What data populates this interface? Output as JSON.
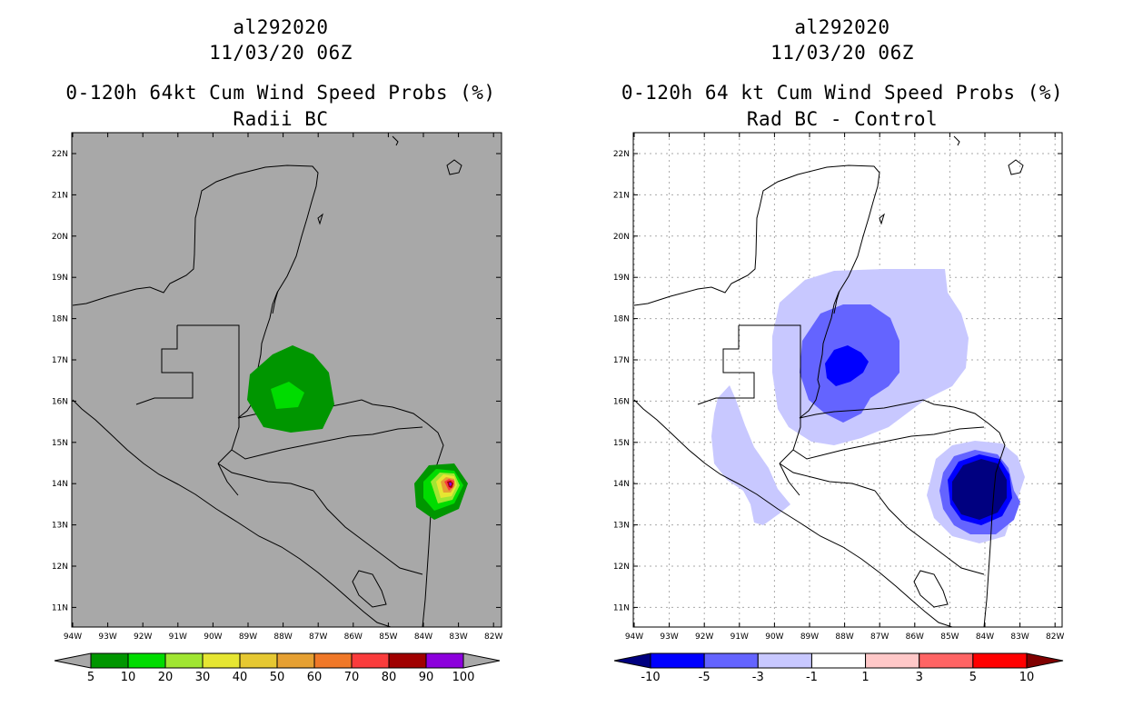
{
  "panels": [
    {
      "storm_id": "al292020",
      "datetime": "11/03/20 06Z",
      "product": "0-120h 64kt Cum Wind Speed Probs (%)",
      "subtitle": "Radii BC",
      "background": "#a8a8a8",
      "colorbar_labels": [
        "5",
        "10",
        "20",
        "30",
        "40",
        "50",
        "60",
        "70",
        "80",
        "90",
        "100"
      ],
      "colorbar_colors": [
        "#a8a8a8",
        "#009600",
        "#00dc00",
        "#a0e632",
        "#e6e632",
        "#e6c832",
        "#e6a032",
        "#f07828",
        "#fa3c3c",
        "#a00000",
        "#8c00dc",
        "#a8a8a8"
      ]
    },
    {
      "storm_id": "al292020",
      "datetime": "11/03/20 06Z",
      "product": "0-120h 64 kt Cum Wind Speed Probs (%)",
      "subtitle": "Rad BC - Control",
      "background": "#ffffff",
      "colorbar_labels": [
        "-10",
        "-5",
        "-3",
        "-1",
        "1",
        "3",
        "5",
        "10"
      ],
      "colorbar_colors": [
        "#000080",
        "#0000ff",
        "#6464ff",
        "#c8c8ff",
        "#ffffff",
        "#ffc8c8",
        "#ff6464",
        "#ff0000",
        "#800000"
      ]
    }
  ],
  "axes": {
    "lat_labels": [
      "22N",
      "21N",
      "20N",
      "19N",
      "18N",
      "17N",
      "16N",
      "15N",
      "14N",
      "13N",
      "12N",
      "11N"
    ],
    "lon_labels": [
      "94W",
      "93W",
      "92W",
      "91W",
      "90W",
      "89W",
      "88W",
      "87W",
      "86W",
      "85W",
      "84W",
      "83W",
      "82W"
    ],
    "lat_range": [
      10.5,
      22.5
    ],
    "lon_range": [
      -94,
      -81.6
    ]
  }
}
